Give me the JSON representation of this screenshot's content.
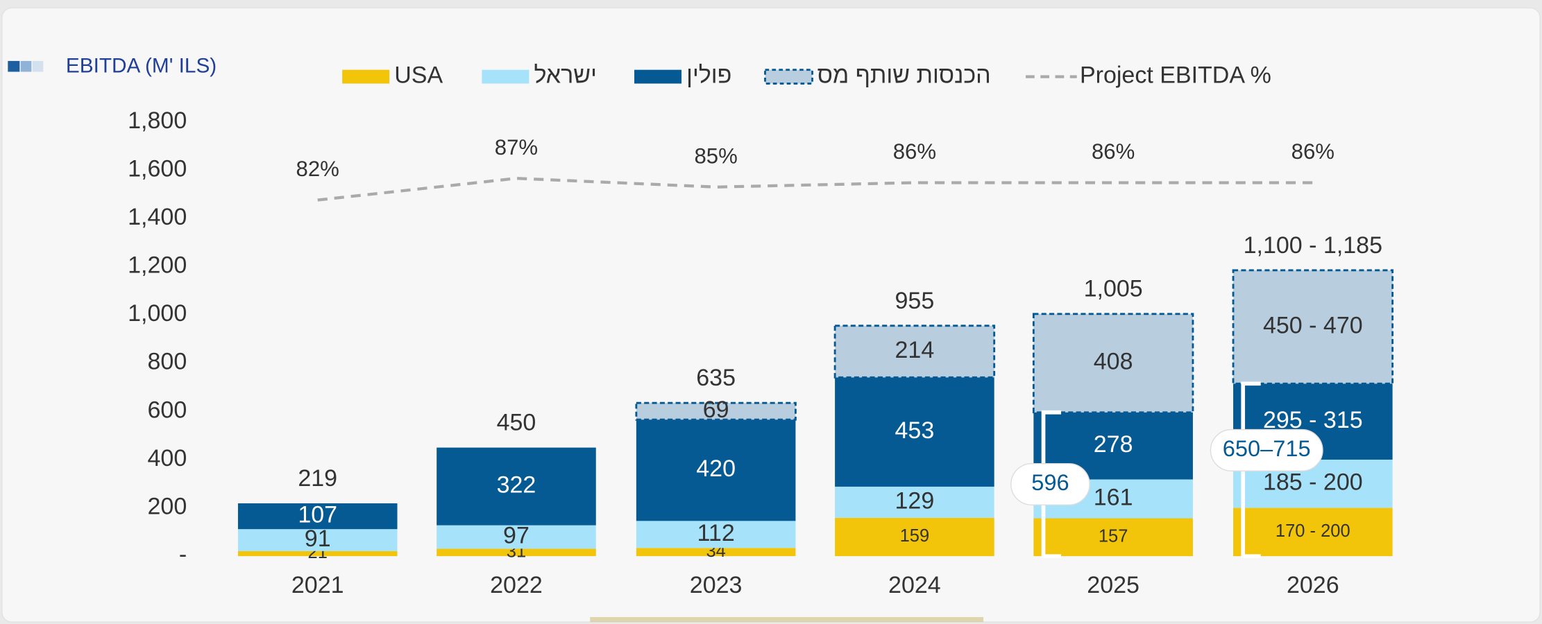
{
  "chart_data": {
    "type": "bar",
    "title": "EBITDA (M' ILS)",
    "categories": [
      "2021",
      "2022",
      "2023",
      "2024",
      "2025",
      "2026"
    ],
    "stacked": true,
    "series": [
      {
        "name": "USA",
        "color": "#f2c40a",
        "values": [
          21,
          31,
          34,
          159,
          157,
          200
        ],
        "value_labels": [
          "21",
          "31",
          "34",
          "159",
          "157",
          "170 - 200"
        ]
      },
      {
        "name": "ישראל",
        "color": "#a6e3fa",
        "values": [
          91,
          97,
          112,
          129,
          161,
          200
        ],
        "value_labels": [
          "91",
          "97",
          "112",
          "129",
          "161",
          "185 - 200"
        ]
      },
      {
        "name": "פולין",
        "color": "#065a93",
        "values": [
          107,
          322,
          420,
          453,
          278,
          315
        ],
        "value_labels": [
          "107",
          "322",
          "420",
          "453",
          "278",
          "295 - 315"
        ]
      },
      {
        "name": "הכנסות שותף מס",
        "color": "#b8cedf",
        "border_color": "#065a93",
        "dashed": true,
        "values": [
          null,
          null,
          69,
          214,
          408,
          470
        ],
        "value_labels": [
          null,
          null,
          "69",
          "214",
          "408",
          "450 - 470"
        ]
      },
      {
        "name": "Project EBITDA %",
        "type": "line",
        "axis": "y2",
        "color": "#aaaaaa",
        "dashed": true,
        "values": [
          82,
          87,
          85,
          86,
          86,
          86
        ],
        "value_labels": [
          "82%",
          "87%",
          "85%",
          "86%",
          "86%",
          "86%"
        ]
      }
    ],
    "totals": {
      "values": [
        219,
        450,
        635,
        955,
        1005,
        1185
      ],
      "value_labels": [
        "219",
        "450",
        "635",
        "955",
        "1,005",
        "1,100 - 1,185"
      ]
    },
    "annotations": [
      "596",
      "650–715"
    ],
    "ylim": [
      0,
      1800
    ],
    "yticks": [
      {
        "value": 0,
        "label": "-"
      },
      200,
      400,
      600,
      800,
      {
        "value": 1000,
        "label": "1,000"
      },
      {
        "value": 1200,
        "label": "1,200"
      },
      {
        "value": 1400,
        "label": "1,400"
      },
      {
        "value": 1600,
        "label": "1,600"
      },
      {
        "value": 1800,
        "label": "1,800"
      }
    ],
    "y2lim": [
      0,
      100
    ],
    "grid": false,
    "legend": "top"
  }
}
